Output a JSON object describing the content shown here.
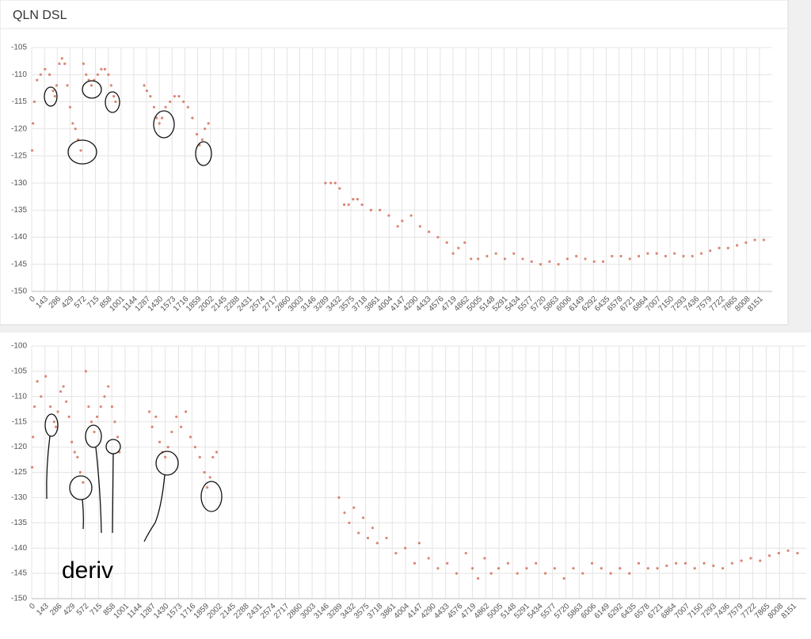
{
  "chart_data": [
    {
      "type": "scatter",
      "title": "QLN DSL",
      "color": "#d4725a",
      "grid": true,
      "xlim": [
        0,
        8294
      ],
      "ylim": [
        -150,
        -105
      ],
      "yticks": [
        -150,
        -145,
        -140,
        -135,
        -130,
        -125,
        -120,
        -115,
        -110,
        -105
      ],
      "xticks": [
        0,
        143,
        286,
        429,
        572,
        715,
        858,
        1001,
        1144,
        1287,
        1430,
        1573,
        1716,
        1859,
        2002,
        2145,
        2288,
        2431,
        2574,
        2717,
        2860,
        3003,
        3146,
        3289,
        3432,
        3575,
        3718,
        3861,
        4004,
        4147,
        4290,
        4433,
        4576,
        4719,
        4862,
        5005,
        5148,
        5291,
        5434,
        5577,
        5720,
        5863,
        6006,
        6149,
        6292,
        6435,
        6578,
        6721,
        6864,
        7007,
        7150,
        7293,
        7436,
        7579,
        7722,
        7865,
        8008,
        8151
      ],
      "x": [
        5,
        15,
        30,
        60,
        100,
        150,
        200,
        240,
        260,
        280,
        310,
        340,
        370,
        400,
        430,
        460,
        490,
        520,
        550,
        580,
        610,
        640,
        670,
        700,
        740,
        780,
        820,
        860,
        890,
        920,
        940,
        1260,
        1290,
        1330,
        1370,
        1400,
        1430,
        1460,
        1500,
        1550,
        1600,
        1650,
        1700,
        1750,
        1800,
        1850,
        1880,
        1910,
        1940,
        1980,
        3290,
        3350,
        3400,
        3450,
        3500,
        3550,
        3600,
        3650,
        3700,
        3800,
        3900,
        4000,
        4100,
        4150,
        4250,
        4350,
        4450,
        4550,
        4650,
        4720,
        4780,
        4850,
        4920,
        5000,
        5100,
        5200,
        5300,
        5400,
        5500,
        5600,
        5700,
        5800,
        5900,
        6000,
        6100,
        6200,
        6300,
        6400,
        6500,
        6600,
        6700,
        6800,
        6900,
        7000,
        7100,
        7200,
        7300,
        7400,
        7500,
        7600,
        7700,
        7800,
        7900,
        8000,
        8100,
        8200
      ],
      "values": [
        -124,
        -119,
        -115,
        -111,
        -110,
        -109,
        -110,
        -113,
        -114,
        -112,
        -108,
        -107,
        -108,
        -112,
        -116,
        -119,
        -120,
        -122,
        -124,
        -108,
        -110,
        -111,
        -112,
        -111,
        -110,
        -109,
        -109,
        -110,
        -112,
        -114,
        -115,
        -112,
        -113,
        -114,
        -116,
        -118,
        -119,
        -118,
        -116,
        -115,
        -114,
        -114,
        -115,
        -116,
        -118,
        -121,
        -123,
        -122,
        -120,
        -119,
        -130,
        -130,
        -130,
        -131,
        -134,
        -134,
        -133,
        -133,
        -134,
        -135,
        -135,
        -136,
        -138,
        -137,
        -136,
        -138,
        -139,
        -140,
        -141,
        -143,
        -142,
        -141,
        -144,
        -144,
        -143.5,
        -143,
        -144,
        -143,
        -144,
        -144.5,
        -145,
        -144.5,
        -145,
        -144,
        -143.5,
        -144,
        -144.5,
        -144.5,
        -143.5,
        -143.5,
        -144,
        -143.5,
        -143,
        -143,
        -143.5,
        -143,
        -143.5,
        -143.5,
        -143,
        -142.5,
        -142,
        -142,
        -141.5,
        -141,
        -140.5,
        -140.5
      ]
    },
    {
      "type": "scatter",
      "annotation": "deriv",
      "color": "#d4725a",
      "grid": true,
      "xlim": [
        0,
        8294
      ],
      "ylim": [
        -150,
        -100
      ],
      "yticks": [
        -150,
        -145,
        -140,
        -135,
        -130,
        -125,
        -120,
        -115,
        -110,
        -105,
        -100
      ],
      "xticks": [
        0,
        143,
        286,
        429,
        572,
        715,
        858,
        1001,
        1144,
        1287,
        1430,
        1573,
        1716,
        1859,
        2002,
        2145,
        2288,
        2431,
        2574,
        2717,
        2860,
        3003,
        3146,
        3289,
        3432,
        3575,
        3718,
        3861,
        4004,
        4147,
        4290,
        4433,
        4576,
        4719,
        4862,
        5005,
        5148,
        5291,
        5434,
        5577,
        5720,
        5863,
        6006,
        6149,
        6292,
        6435,
        6578,
        6721,
        6864,
        7007,
        7150,
        7293,
        7436,
        7579,
        7722,
        7865,
        8008,
        8151
      ],
      "x": [
        5,
        15,
        30,
        60,
        100,
        150,
        200,
        240,
        260,
        280,
        310,
        340,
        370,
        400,
        430,
        460,
        490,
        520,
        550,
        580,
        610,
        640,
        670,
        700,
        740,
        780,
        820,
        860,
        890,
        920,
        940,
        1260,
        1290,
        1330,
        1370,
        1400,
        1430,
        1460,
        1500,
        1550,
        1600,
        1650,
        1700,
        1750,
        1800,
        1850,
        1880,
        1910,
        1940,
        1980,
        3290,
        3350,
        3400,
        3450,
        3500,
        3550,
        3600,
        3650,
        3700,
        3800,
        3900,
        4000,
        4100,
        4150,
        4250,
        4350,
        4450,
        4550,
        4650,
        4720,
        4780,
        4850,
        4920,
        5000,
        5100,
        5200,
        5300,
        5400,
        5500,
        5600,
        5700,
        5800,
        5900,
        6000,
        6100,
        6200,
        6300,
        6400,
        6500,
        6600,
        6700,
        6800,
        6900,
        7000,
        7100,
        7200,
        7300,
        7400,
        7500,
        7600,
        7700,
        7800,
        7900,
        8000,
        8100,
        8200
      ],
      "values": [
        -124,
        -118,
        -112,
        -107,
        -110,
        -106,
        -112,
        -115,
        -116,
        -113,
        -109,
        -108,
        -111,
        -114,
        -119,
        -121,
        -122,
        -125,
        -127,
        -105,
        -112,
        -115,
        -117,
        -114,
        -112,
        -110,
        -108,
        -112,
        -115,
        -118,
        -121,
        -113,
        -116,
        -114,
        -119,
        -121,
        -122,
        -120,
        -117,
        -114,
        -116,
        -113,
        -118,
        -120,
        -122,
        -125,
        -128,
        -126,
        -122,
        -121,
        -130,
        -133,
        -135,
        -132,
        -137,
        -134,
        -138,
        -136,
        -139,
        -138,
        -141,
        -140,
        -143,
        -139,
        -142,
        -144,
        -143,
        -145,
        -141,
        -144,
        -146,
        -142,
        -145,
        -144,
        -143,
        -145,
        -144,
        -143,
        -145,
        -144,
        -146,
        -144,
        -145,
        -143,
        -144,
        -145,
        -144,
        -145,
        -143,
        -144,
        -144,
        -143.5,
        -143,
        -143,
        -144,
        -143,
        -143.5,
        -144,
        -143,
        -142.5,
        -142,
        -142.5,
        -141.5,
        -141,
        -140.5,
        -141
      ]
    }
  ]
}
